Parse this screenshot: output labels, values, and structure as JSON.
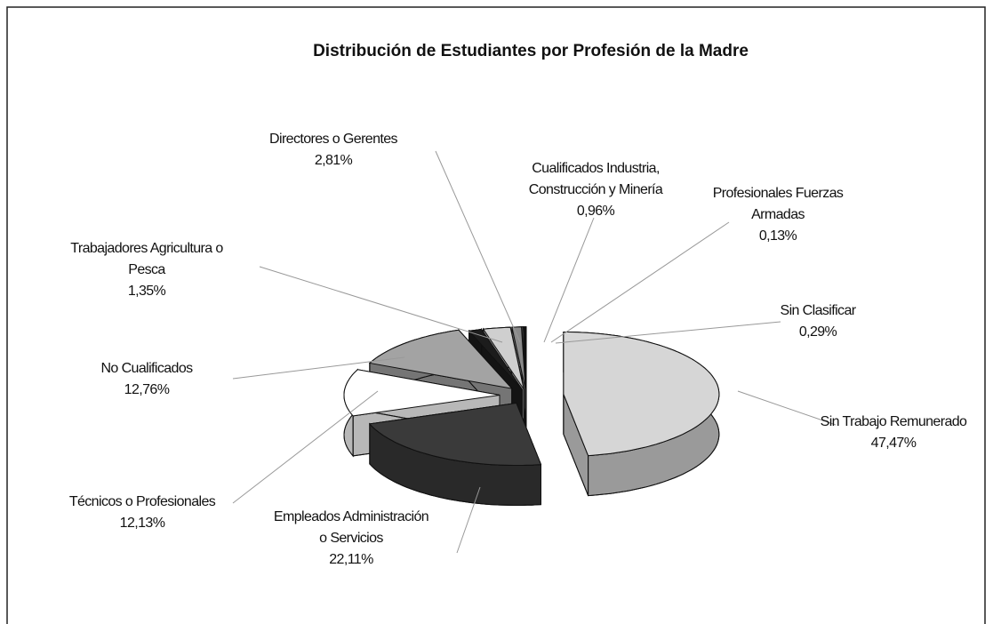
{
  "chart_data": {
    "type": "pie",
    "title": "Distribución de Estudiantes por Profesión de la Madre",
    "categories": [
      "Sin Trabajo Remunerado",
      "Empleados Administración o Servicios",
      "Técnicos o Profesionales",
      "No Cualificados",
      "Trabajadores Agricultura o Pesca",
      "Directores o Gerentes",
      "Cualificados Industria, Construcción y Minería",
      "Profesionales Fuerzas Armadas",
      "Sin Clasificar"
    ],
    "values": [
      47.47,
      22.11,
      12.13,
      12.76,
      1.35,
      2.81,
      0.96,
      0.13,
      0.29
    ],
    "value_labels": [
      "47,47%",
      "22,11%",
      "12,13%",
      "12,76%",
      "1,35%",
      "2,81%",
      "0,96%",
      "0,13%",
      "0,29%"
    ],
    "colors": [
      "#d6d6d6",
      "#3a3a3a",
      "#ffffff",
      "#a3a3a3",
      "#1c1c1c",
      "#cfcfcf",
      "#8a8a8a",
      "#6a6a6a",
      "#111111"
    ]
  }
}
